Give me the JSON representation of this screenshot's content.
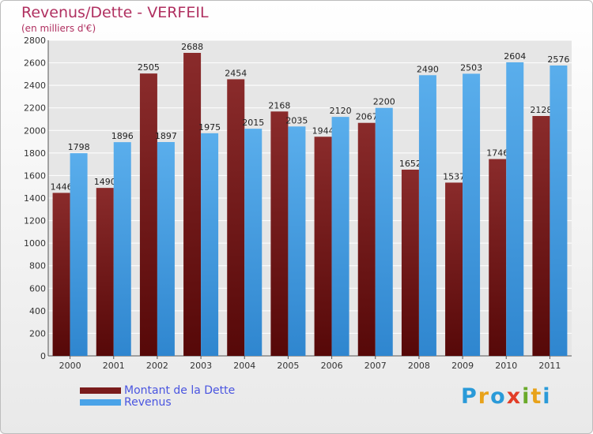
{
  "header": {
    "title": "Revenus/Dette - VERFEIL",
    "subtitle": "(en milliers d'€)"
  },
  "logo": {
    "text": "Proxiti",
    "letters": [
      {
        "ch": "P",
        "color": "#2a9ad8"
      },
      {
        "ch": "r",
        "color": "#e8a21a"
      },
      {
        "ch": "o",
        "color": "#2a9ad8"
      },
      {
        "ch": "x",
        "color": "#e23d27"
      },
      {
        "ch": "i",
        "color": "#6aaa2a"
      },
      {
        "ch": "t",
        "color": "#e8a21a"
      },
      {
        "ch": "i",
        "color": "#2a9ad8"
      }
    ]
  },
  "chart_data": {
    "type": "bar",
    "title": "Revenus/Dette - VERFEIL",
    "subtitle": "(en milliers d'€)",
    "categories": [
      "2000",
      "2001",
      "2002",
      "2003",
      "2004",
      "2005",
      "2006",
      "2007",
      "2008",
      "2009",
      "2010",
      "2011"
    ],
    "series": [
      {
        "name": "Montant de la Dette",
        "color": "#7a1c1c",
        "values": [
          1446,
          1490,
          2505,
          2688,
          2454,
          2168,
          1944,
          2067,
          1652,
          1537,
          1746,
          2128
        ]
      },
      {
        "name": "Revenus",
        "color": "#4aa3e8",
        "values": [
          1798,
          1896,
          1897,
          1975,
          2015,
          2035,
          2120,
          2200,
          2490,
          2503,
          2604,
          2576
        ]
      }
    ],
    "ylim": [
      0,
      2800
    ],
    "yticks": [
      0,
      200,
      400,
      600,
      800,
      1000,
      1200,
      1400,
      1600,
      1800,
      2000,
      2200,
      2400,
      2600,
      2800
    ],
    "grid": true,
    "legend_position": "bottom-left"
  }
}
